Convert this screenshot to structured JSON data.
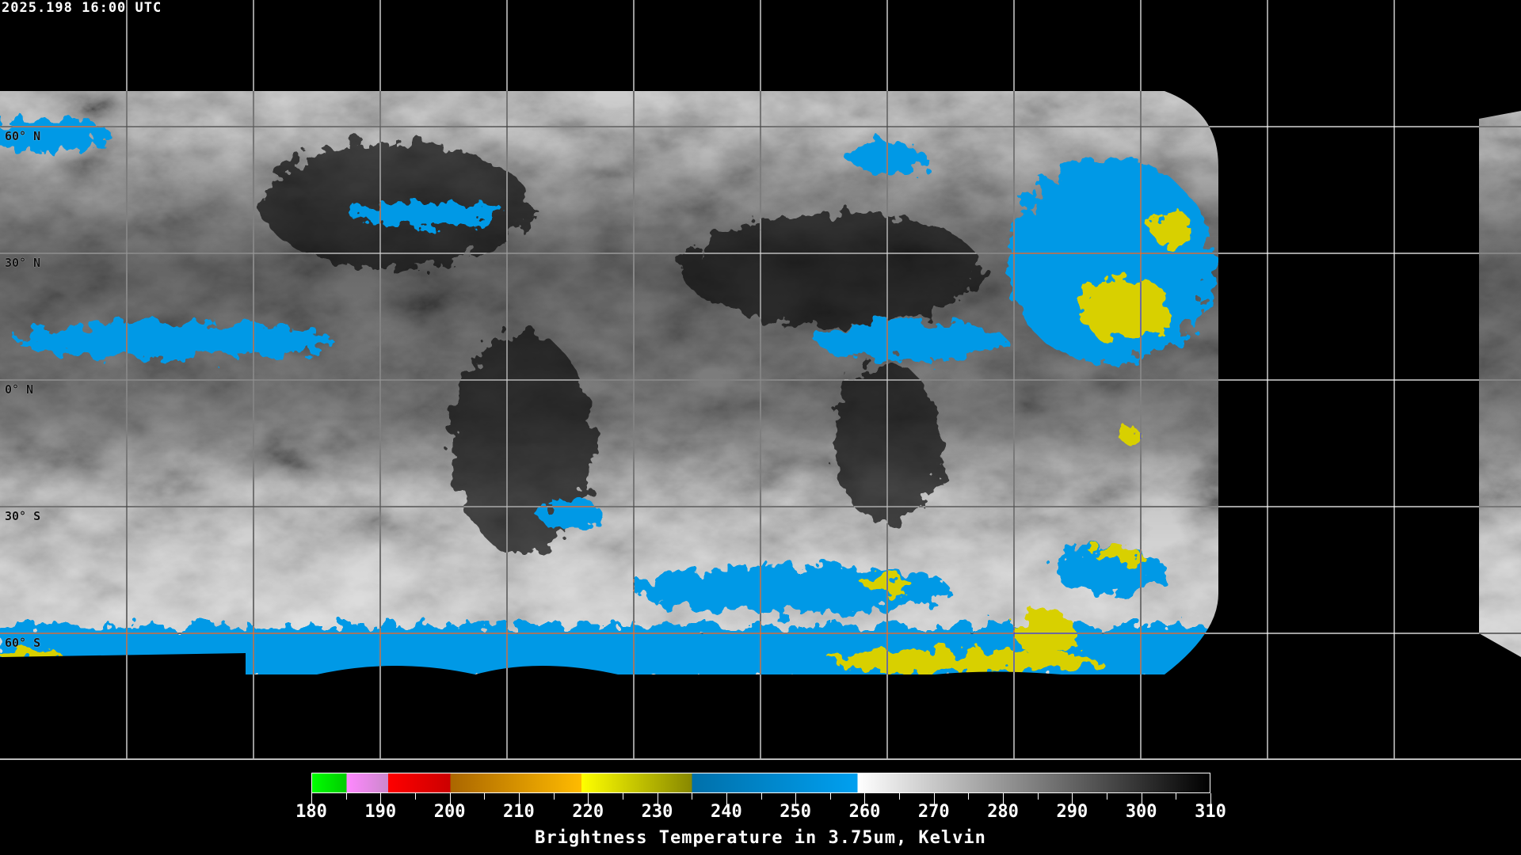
{
  "header": {
    "timestamp": "2025.198 16:00 UTC"
  },
  "map": {
    "projection": "equirectangular",
    "latitude_labels": [
      "60° N",
      "30° N",
      "0° N",
      "30° S",
      "60° S"
    ],
    "grid_spacing_degrees": 30
  },
  "colorbar": {
    "title": "Brightness Temperature in 3.75um, Kelvin",
    "min": 180,
    "max": 310,
    "tick_labels": [
      "180",
      "190",
      "200",
      "210",
      "220",
      "230",
      "240",
      "250",
      "260",
      "270",
      "280",
      "290",
      "300",
      "310"
    ],
    "segments": [
      {
        "from": 180,
        "to": 185,
        "start": "#00ff00",
        "end": "#00cc00"
      },
      {
        "from": 185,
        "to": 191,
        "start": "#ff88ff",
        "end": "#cc88cc"
      },
      {
        "from": 191,
        "to": 200,
        "start": "#ff0000",
        "end": "#cc0000"
      },
      {
        "from": 200,
        "to": 219,
        "start": "#aa6600",
        "end": "#ffbb00"
      },
      {
        "from": 219,
        "to": 235,
        "start": "#ffff00",
        "end": "#888800"
      },
      {
        "from": 235,
        "to": 259,
        "start": "#0070aa",
        "end": "#00a0f0"
      },
      {
        "from": 259,
        "to": 310,
        "start": "#ffffff",
        "end": "#000000"
      }
    ]
  }
}
